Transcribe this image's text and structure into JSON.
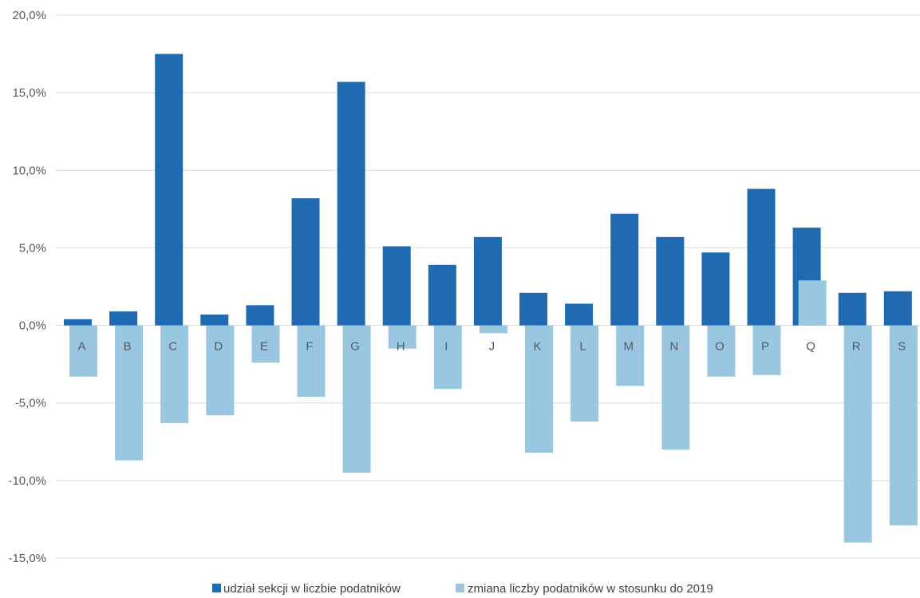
{
  "chart_data": {
    "type": "bar",
    "categories": [
      "A",
      "B",
      "C",
      "D",
      "E",
      "F",
      "G",
      "H",
      "I",
      "J",
      "K",
      "L",
      "M",
      "N",
      "O",
      "P",
      "Q",
      "R",
      "S"
    ],
    "series": [
      {
        "name": "udział sekcji w liczbie podatników",
        "color": "#1f6ab1",
        "values": [
          0.4,
          0.9,
          17.5,
          0.7,
          1.3,
          8.2,
          15.7,
          5.1,
          3.9,
          5.7,
          2.1,
          1.4,
          7.2,
          5.7,
          4.7,
          8.8,
          6.3,
          2.1,
          2.2
        ]
      },
      {
        "name": "zmiana liczby podatników w stosunku do 2019",
        "color": "#99c6e1",
        "values": [
          -3.3,
          -8.7,
          -6.3,
          -5.8,
          -2.4,
          -4.6,
          -9.5,
          -1.5,
          -4.1,
          -0.5,
          -8.2,
          -6.2,
          -3.9,
          -8.0,
          -3.3,
          -3.2,
          2.9,
          -14.0,
          -12.9
        ]
      }
    ],
    "y_ticks": [
      "20,0%",
      "15,0%",
      "10,0%",
      "5,0%",
      "0,0%",
      "-5,0%",
      "-10,0%",
      "-15,0%"
    ],
    "ylim": [
      -15,
      20
    ],
    "grid": true,
    "legend_position": "bottom",
    "gridline_color": "#d9d9d9"
  }
}
